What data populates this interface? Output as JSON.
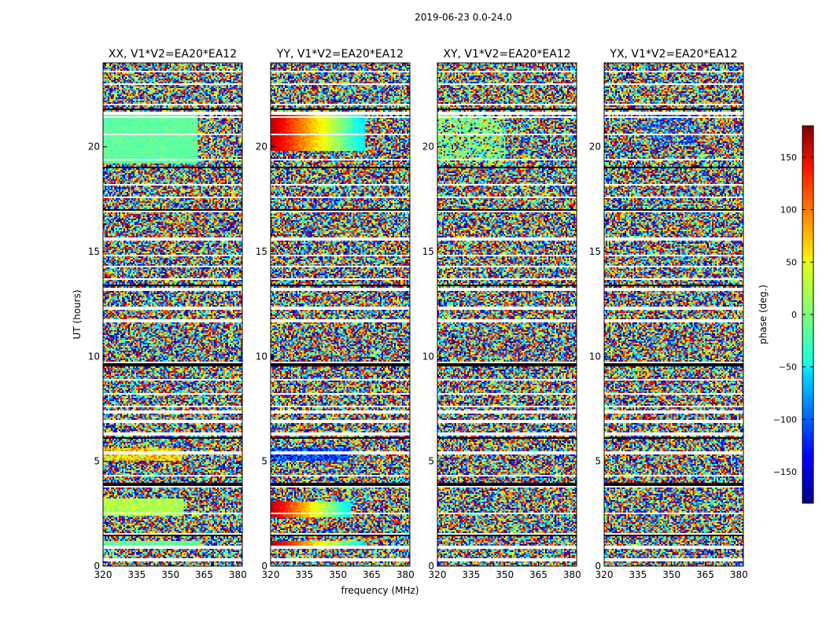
{
  "chart_data": {
    "type": "heatmap",
    "suptitle": "2019-06-23 0.0-24.0",
    "xlabel": "frequency (MHz)",
    "ylabel": "UT (hours)",
    "xlim": [
      320,
      382
    ],
    "ylim": [
      0,
      24
    ],
    "xticks": [
      320,
      335,
      350,
      365,
      380
    ],
    "yticks": [
      0,
      5,
      10,
      15,
      20
    ],
    "panels": [
      {
        "title": "XX, V1*V2=EA20*EA12"
      },
      {
        "title": "YY, V1*V2=EA20*EA12"
      },
      {
        "title": "XY, V1*V2=EA20*EA12"
      },
      {
        "title": "YX, V1*V2=EA20*EA12"
      }
    ],
    "colorbar": {
      "label": "phase (deg.)",
      "range": [
        -180,
        180
      ],
      "ticks": [
        150,
        100,
        50,
        0,
        -50,
        -100,
        -150
      ],
      "tick_labels": [
        "150",
        "100",
        "50",
        "0",
        "−50",
        "−100",
        "−150"
      ]
    },
    "blank_rows_hours": [
      0.3,
      0.9,
      1.55,
      2.5,
      3.8,
      4.3,
      5.4,
      6.3,
      6.9,
      7.35,
      7.6,
      8.2,
      8.9,
      9.7,
      11.7,
      12.3,
      13.2,
      13.7,
      14.3,
      14.8,
      15.6,
      16.9,
      17.6,
      18.2,
      19.4,
      20.6,
      21.4,
      21.6,
      22.0,
      23.0,
      23.6
    ],
    "gap_rows_hours": [
      1.45,
      3.9,
      6.1,
      9.6,
      13.4,
      17.0,
      19.0,
      21.8
    ]
  }
}
